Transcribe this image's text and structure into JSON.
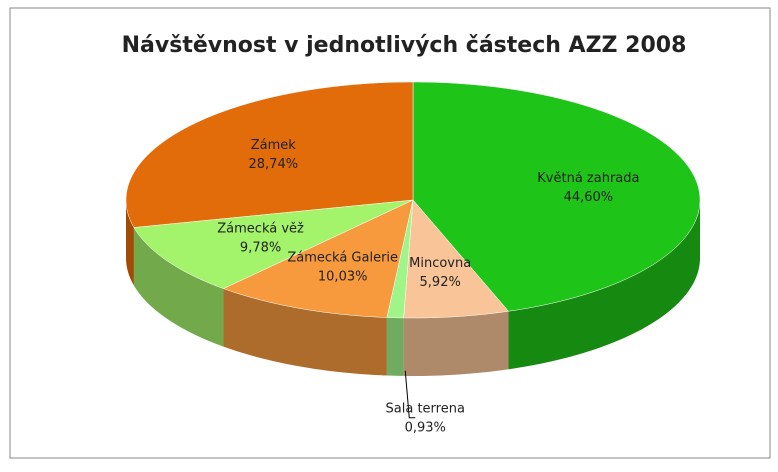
{
  "chart_data": {
    "type": "pie3d",
    "title": "Návštěvnost v jednotlivých částech AZZ 2008",
    "categories": [
      "Květná zahrada",
      "Mincovna",
      "Sala terrena",
      "Zámecká Galerie",
      "Zámecká věž",
      "Zámek"
    ],
    "values": [
      44.6,
      5.92,
      0.93,
      10.03,
      9.78,
      28.74
    ],
    "value_labels": [
      "44,60%",
      "5,92%",
      "0,93%",
      "10,03%",
      "9,78%",
      "28,74%"
    ],
    "colors": [
      "#1fc418",
      "#f9c497",
      "#9ff587",
      "#f79a3e",
      "#a3f36b",
      "#e36c0a"
    ]
  }
}
